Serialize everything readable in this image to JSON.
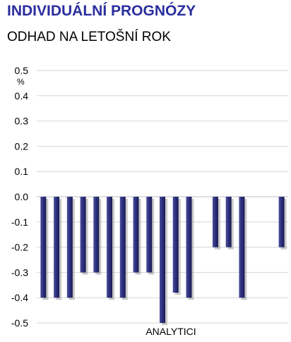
{
  "header": {
    "title": "INDIVIDUÁLNÍ PROGNÓZY",
    "subtitle": "ODHAD NA LETOŠNÍ ROK"
  },
  "chart_data": {
    "type": "bar",
    "title": "INDIVIDUÁLNÍ PROGNÓZY",
    "subtitle": "ODHAD NA LETOŠNÍ ROK",
    "xlabel": "ANALYTICI",
    "ylabel": "%",
    "ylim": [
      -0.5,
      0.5
    ],
    "yticks": [
      "0.5",
      "0.4",
      "0.3",
      "0.2",
      "0.1",
      "0.0",
      "-0.1",
      "-0.2",
      "-0.3",
      "-0.4",
      "-0.5"
    ],
    "grid": true,
    "bar_color": "#2e2f7a",
    "values": [
      -0.4,
      -0.4,
      -0.4,
      -0.3,
      -0.3,
      -0.4,
      -0.4,
      -0.3,
      -0.3,
      -0.5,
      -0.38,
      -0.4,
      null,
      -0.2,
      -0.2,
      -0.4,
      null,
      null,
      -0.2
    ]
  }
}
